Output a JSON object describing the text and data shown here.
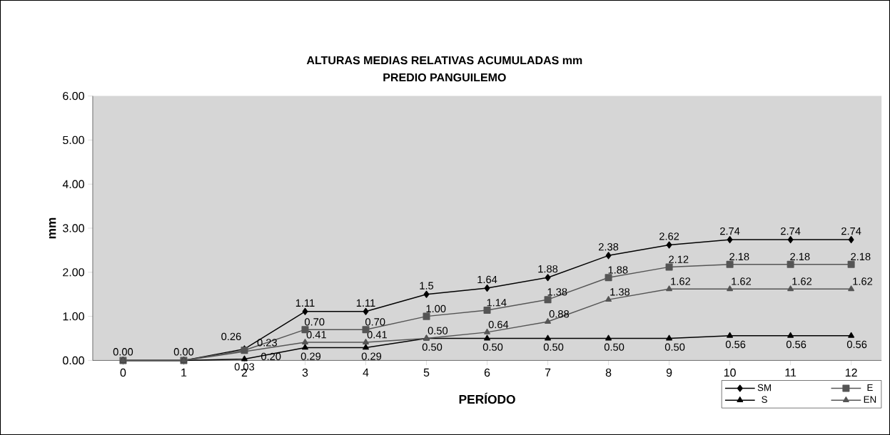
{
  "chart_data": {
    "type": "line",
    "title": "ALTURAS MEDIAS RELATIVAS ACUMULADAS mm",
    "subtitle": "PREDIO PANGUILEMO",
    "xlabel": "PERÍODO",
    "ylabel": "mm",
    "categories": [
      "0",
      "1",
      "2",
      "3",
      "4",
      "5",
      "6",
      "7",
      "8",
      "9",
      "10",
      "11",
      "12"
    ],
    "ylim": [
      0,
      6
    ],
    "yticks": [
      {
        "value": 0,
        "label": "0.00"
      },
      {
        "value": 1,
        "label": "1.00"
      },
      {
        "value": 2,
        "label": "2.00"
      },
      {
        "value": 3,
        "label": "3.00"
      },
      {
        "value": 4,
        "label": "4.00"
      },
      {
        "value": 5,
        "label": "5.00"
      },
      {
        "value": 6,
        "label": "6.00"
      }
    ],
    "grid": false,
    "legend": "bottom right",
    "line_style": "solid",
    "series": [
      {
        "name": "SM",
        "color": "#000000",
        "marker": "diamond",
        "values": [
          0,
          0,
          0.26,
          1.11,
          1.11,
          1.5,
          1.64,
          1.88,
          2.38,
          2.62,
          2.74,
          2.74,
          2.74
        ],
        "value_labels": [
          "0.00",
          "0.00",
          "0.26",
          "1.11",
          "1.11",
          "1.5",
          "1.64",
          "1.88",
          "2.38",
          "2.62",
          "2.74",
          "2.74",
          "2.74"
        ]
      },
      {
        "name": "E",
        "color": "#555555",
        "marker": "square",
        "values": [
          0,
          0,
          0.23,
          0.7,
          0.7,
          1.0,
          1.14,
          1.38,
          1.88,
          2.12,
          2.18,
          2.18,
          2.18
        ],
        "value_labels": [
          null,
          null,
          "0.23",
          "0.70",
          "0.70",
          "1.00",
          "1.14",
          "1.38",
          "1.88",
          "2.12",
          "2.18",
          "2.18",
          "2.18"
        ]
      },
      {
        "name": "S",
        "color": "#000000",
        "marker": "triangle",
        "values": [
          0,
          0,
          0.03,
          0.29,
          0.29,
          0.5,
          0.5,
          0.5,
          0.5,
          0.5,
          0.56,
          0.56,
          0.56
        ],
        "value_labels": [
          null,
          null,
          "0.03",
          "0.29",
          "0.29",
          "0.50",
          "0.50",
          "0.50",
          "0.50",
          "0.50",
          "0.56",
          "0.56",
          "0.56"
        ]
      },
      {
        "name": "EN",
        "color": "#555555",
        "marker": "triangle",
        "values": [
          0,
          0,
          0.2,
          0.41,
          0.41,
          0.5,
          0.64,
          0.88,
          1.38,
          1.62,
          1.62,
          1.62,
          1.62
        ],
        "value_labels": [
          null,
          null,
          "0.20",
          "0.41",
          "0.41",
          "0.50",
          "0.64",
          "0.88",
          "1.38",
          "1.62",
          "1.62",
          "1.62",
          "1.62"
        ]
      }
    ]
  }
}
